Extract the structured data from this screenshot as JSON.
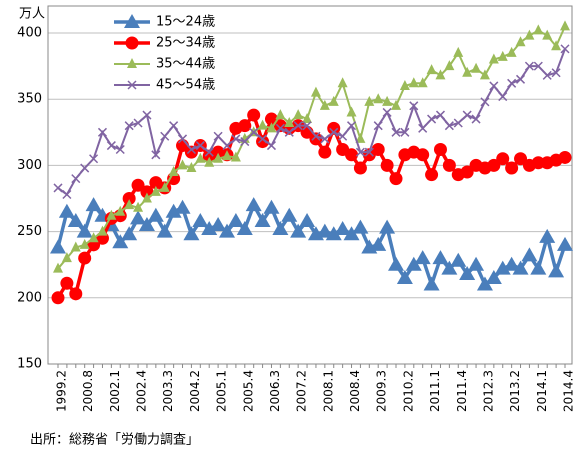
{
  "chart_data": {
    "type": "line",
    "y_label": "万人",
    "source": "出所：総務省「労働力調査」",
    "categories": [
      "1999.2",
      null,
      null,
      "2000.8",
      null,
      null,
      "2002.1",
      null,
      null,
      "2002.4",
      null,
      null,
      "2003.3",
      null,
      null,
      "2004.2",
      null,
      null,
      "2005.1",
      null,
      null,
      "2005.4",
      null,
      null,
      "2006.3",
      null,
      null,
      "2007.2",
      null,
      null,
      "2008.1",
      null,
      null,
      "2008.4",
      null,
      null,
      "2009.3",
      null,
      null,
      "2010.2",
      null,
      null,
      "2011.1",
      null,
      null,
      "2011.4",
      null,
      null,
      "2012.3",
      null,
      null,
      "2013.2",
      null,
      null,
      "2014.1",
      null,
      null,
      "2014.4"
    ],
    "ylim": [
      150,
      400
    ],
    "yticks": [
      150,
      200,
      250,
      300,
      350,
      400
    ],
    "grid": true,
    "series": [
      {
        "name": "15～24歳",
        "color": "#4a7ebb",
        "marker": "triangle",
        "values": [
          238,
          265,
          258,
          250,
          270,
          262,
          255,
          242,
          248,
          260,
          255,
          262,
          250,
          265,
          268,
          248,
          258,
          252,
          255,
          250,
          258,
          252,
          270,
          258,
          268,
          252,
          262,
          250,
          258,
          248,
          250,
          248,
          252,
          248,
          253,
          238,
          240,
          253,
          225,
          215,
          225,
          230,
          210,
          230,
          222,
          228,
          218,
          225,
          210,
          215,
          222,
          225,
          222,
          232,
          222,
          246,
          220,
          240
        ]
      },
      {
        "name": "25～34歳",
        "color": "#ff0000",
        "marker": "circle",
        "values": [
          200,
          211,
          203,
          230,
          240,
          245,
          260,
          262,
          275,
          285,
          280,
          287,
          283,
          290,
          315,
          310,
          315,
          307,
          310,
          308,
          328,
          330,
          338,
          318,
          335,
          330,
          328,
          330,
          325,
          320,
          310,
          328,
          312,
          308,
          298,
          308,
          312,
          300,
          290,
          308,
          310,
          308,
          293,
          312,
          300,
          293,
          295,
          300,
          298,
          300,
          305,
          298,
          305,
          300,
          302,
          302,
          304,
          306
        ]
      },
      {
        "name": "35～44歳",
        "color": "#9bbb59",
        "marker": "small-triangle",
        "values": [
          222,
          230,
          238,
          240,
          245,
          250,
          262,
          265,
          270,
          268,
          275,
          280,
          283,
          295,
          300,
          298,
          305,
          302,
          305,
          307,
          306,
          320,
          325,
          330,
          328,
          338,
          332,
          338,
          335,
          355,
          345,
          348,
          362,
          340,
          320,
          348,
          350,
          348,
          345,
          360,
          362,
          362,
          372,
          368,
          375,
          385,
          370,
          373,
          368,
          380,
          382,
          385,
          393,
          398,
          402,
          398,
          390,
          405
        ]
      },
      {
        "name": "45～54歳",
        "color": "#8064a2",
        "marker": "cross",
        "values": [
          283,
          278,
          290,
          298,
          305,
          325,
          315,
          312,
          330,
          332,
          338,
          308,
          322,
          330,
          320,
          312,
          315,
          310,
          322,
          315,
          320,
          318,
          325,
          320,
          315,
          328,
          325,
          330,
          330,
          322,
          320,
          325,
          322,
          330,
          310,
          310,
          330,
          340,
          325,
          325,
          345,
          328,
          335,
          338,
          330,
          332,
          338,
          335,
          348,
          360,
          352,
          362,
          365,
          375,
          375,
          368,
          370,
          388
        ]
      }
    ]
  }
}
